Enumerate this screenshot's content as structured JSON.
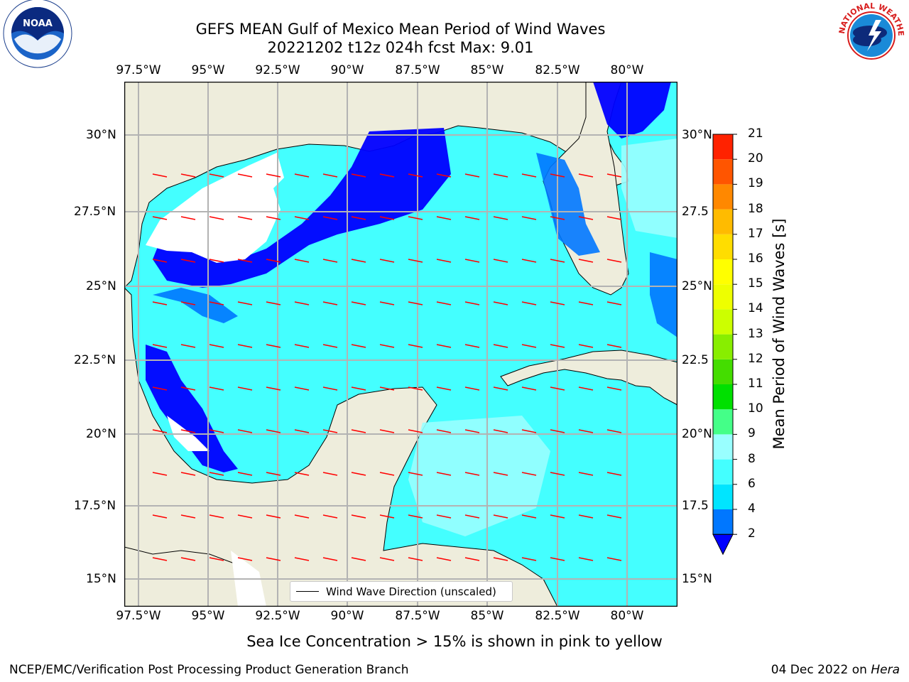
{
  "title": {
    "line1": "GEFS MEAN Gulf of Mexico Mean Period of Wind Waves",
    "line2": "20221202 t12z 024h fcst   Max: 9.01"
  },
  "logos": {
    "left": "NOAA",
    "right": "NATIONAL WEATHER SERVICE"
  },
  "map": {
    "lon_labels": [
      "97.5°W",
      "95°W",
      "92.5°W",
      "90°W",
      "87.5°W",
      "85°W",
      "82.5°W",
      "80°W"
    ],
    "lat_labels": [
      "30°N",
      "27.5°N",
      "25°N",
      "22.5°N",
      "20°N",
      "17.5°N",
      "15°N"
    ],
    "right_lat_labels": [
      "30°N",
      "27.5",
      "25°N",
      "22.5",
      "20°N",
      "17.5",
      "15°N"
    ],
    "legend": "Wind Wave Direction (unscaled)",
    "arrow_color": "#ff0000",
    "land_color": "#eeeddc"
  },
  "colorbar": {
    "label": "Mean Period of Wind Waves [s]",
    "ticks": [
      "2",
      "4",
      "6",
      "8",
      "9",
      "10",
      "11",
      "12",
      "13",
      "14",
      "15",
      "16",
      "17",
      "18",
      "19",
      "20",
      "21"
    ],
    "colors": [
      "#0077ff",
      "#00e5ff",
      "#44ffff",
      "#99ffff",
      "#44ff88",
      "#00e000",
      "#44dd00",
      "#88ee00",
      "#ccff00",
      "#eeff00",
      "#ffff00",
      "#ffdd00",
      "#ffbb00",
      "#ff8800",
      "#ff5500",
      "#ff2200",
      "#ff0000"
    ],
    "extend_color": "#0000ff"
  },
  "caption": "Sea Ice Concentration > 15% is shown in pink to yellow",
  "footer": {
    "left": "NCEP/EMC/Verification Post Processing Product Generation Branch",
    "date": "04 Dec 2022 on ",
    "machine": "Hera"
  }
}
